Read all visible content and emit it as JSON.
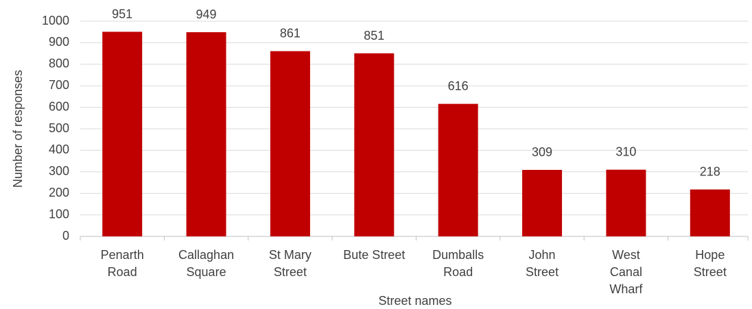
{
  "chart_data": {
    "type": "bar",
    "x_label": "Street names",
    "y_label": "Number of responses",
    "categories": [
      "Penarth\nRoad",
      "Callaghan\nSquare",
      "St Mary\nStreet",
      "Bute Street",
      "Dumballs\nRoad",
      "John\nStreet",
      "West\nCanal\nWharf",
      "Hope\nStreet"
    ],
    "values": [
      951,
      949,
      861,
      851,
      616,
      309,
      310,
      218
    ],
    "color": "#c00000",
    "ylim": [
      0,
      1000
    ],
    "yticks": [
      0,
      100,
      200,
      300,
      400,
      500,
      600,
      700,
      800,
      900,
      1000
    ],
    "grid": true
  }
}
